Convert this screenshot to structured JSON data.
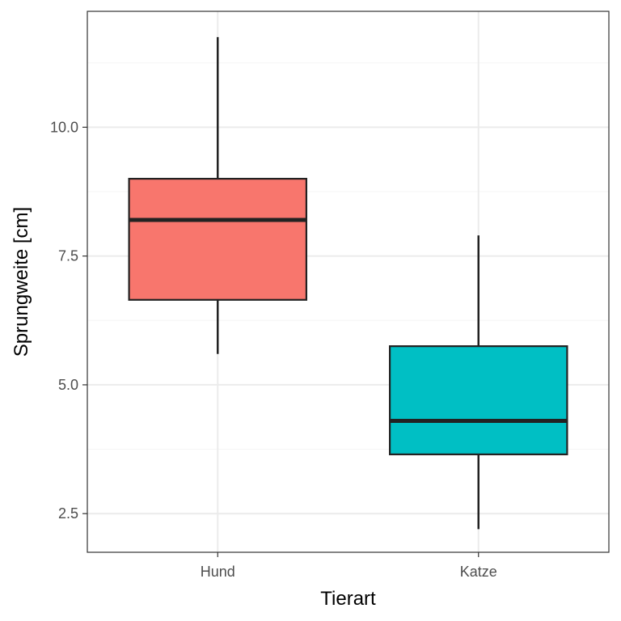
{
  "chart_data": {
    "type": "boxplot",
    "title": "",
    "xlabel": "Tierart",
    "ylabel": "Sprungweite [cm]",
    "categories": [
      "Hund",
      "Katze"
    ],
    "ylim": [
      1.75,
      12.25
    ],
    "yticks": [
      2.5,
      5.0,
      7.5,
      10.0
    ],
    "ytick_labels": [
      "2.5",
      "5.0",
      "7.5",
      "10.0"
    ],
    "y_minor_ticks": [
      3.75,
      6.25,
      8.75,
      11.25
    ],
    "grid": true,
    "legend": "none",
    "boxes": [
      {
        "category": "Hund",
        "min": 5.6,
        "q1": 6.65,
        "median": 8.2,
        "q3": 9.0,
        "max": 11.75,
        "color": "#F8766D"
      },
      {
        "category": "Katze",
        "min": 2.2,
        "q1": 3.65,
        "median": 4.3,
        "q3": 5.75,
        "max": 7.9,
        "color": "#00BFC4"
      }
    ]
  },
  "style": {
    "grid_major": "#ebebeb",
    "grid_minor": "#f5f5f5",
    "panel_border": "#333333",
    "box_outline": "#222222",
    "tick_text": "#4d4d4d"
  }
}
